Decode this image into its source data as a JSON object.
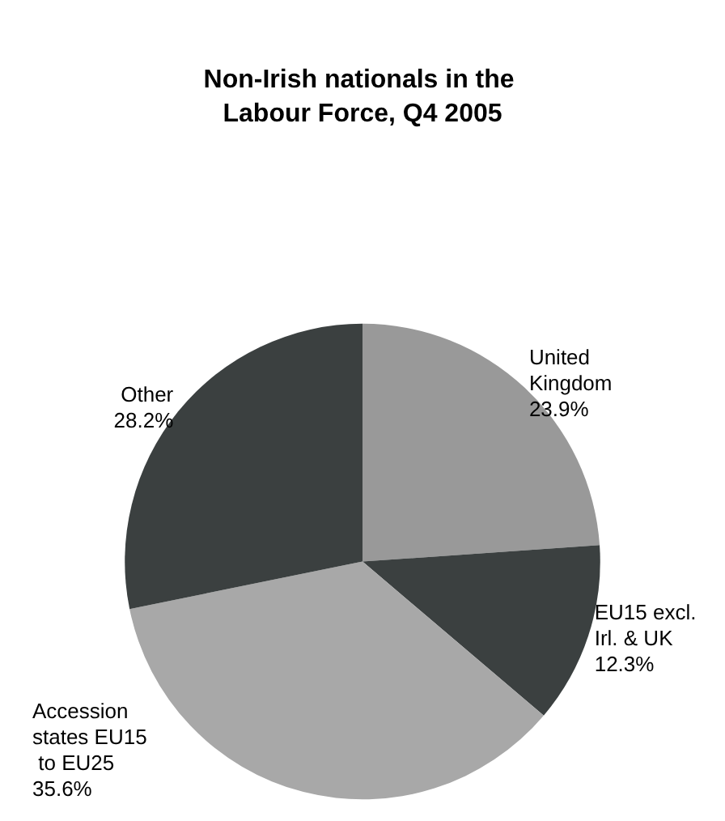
{
  "chart_data": {
    "type": "pie",
    "title": "Non-Irish nationals in the Labour Force, Q4 2005",
    "categories": [
      "United Kingdom",
      "EU15 excl. Irl. & UK",
      "Accession states EU15 to EU25",
      "Other"
    ],
    "values": [
      23.9,
      12.3,
      35.6,
      28.2
    ],
    "colors": [
      "#999999",
      "#3b4040",
      "#a8a8a8",
      "#3b4040"
    ],
    "value_labels": [
      "23.9%",
      "12.3%",
      "35.6%",
      "28.2%"
    ],
    "legend": false
  }
}
